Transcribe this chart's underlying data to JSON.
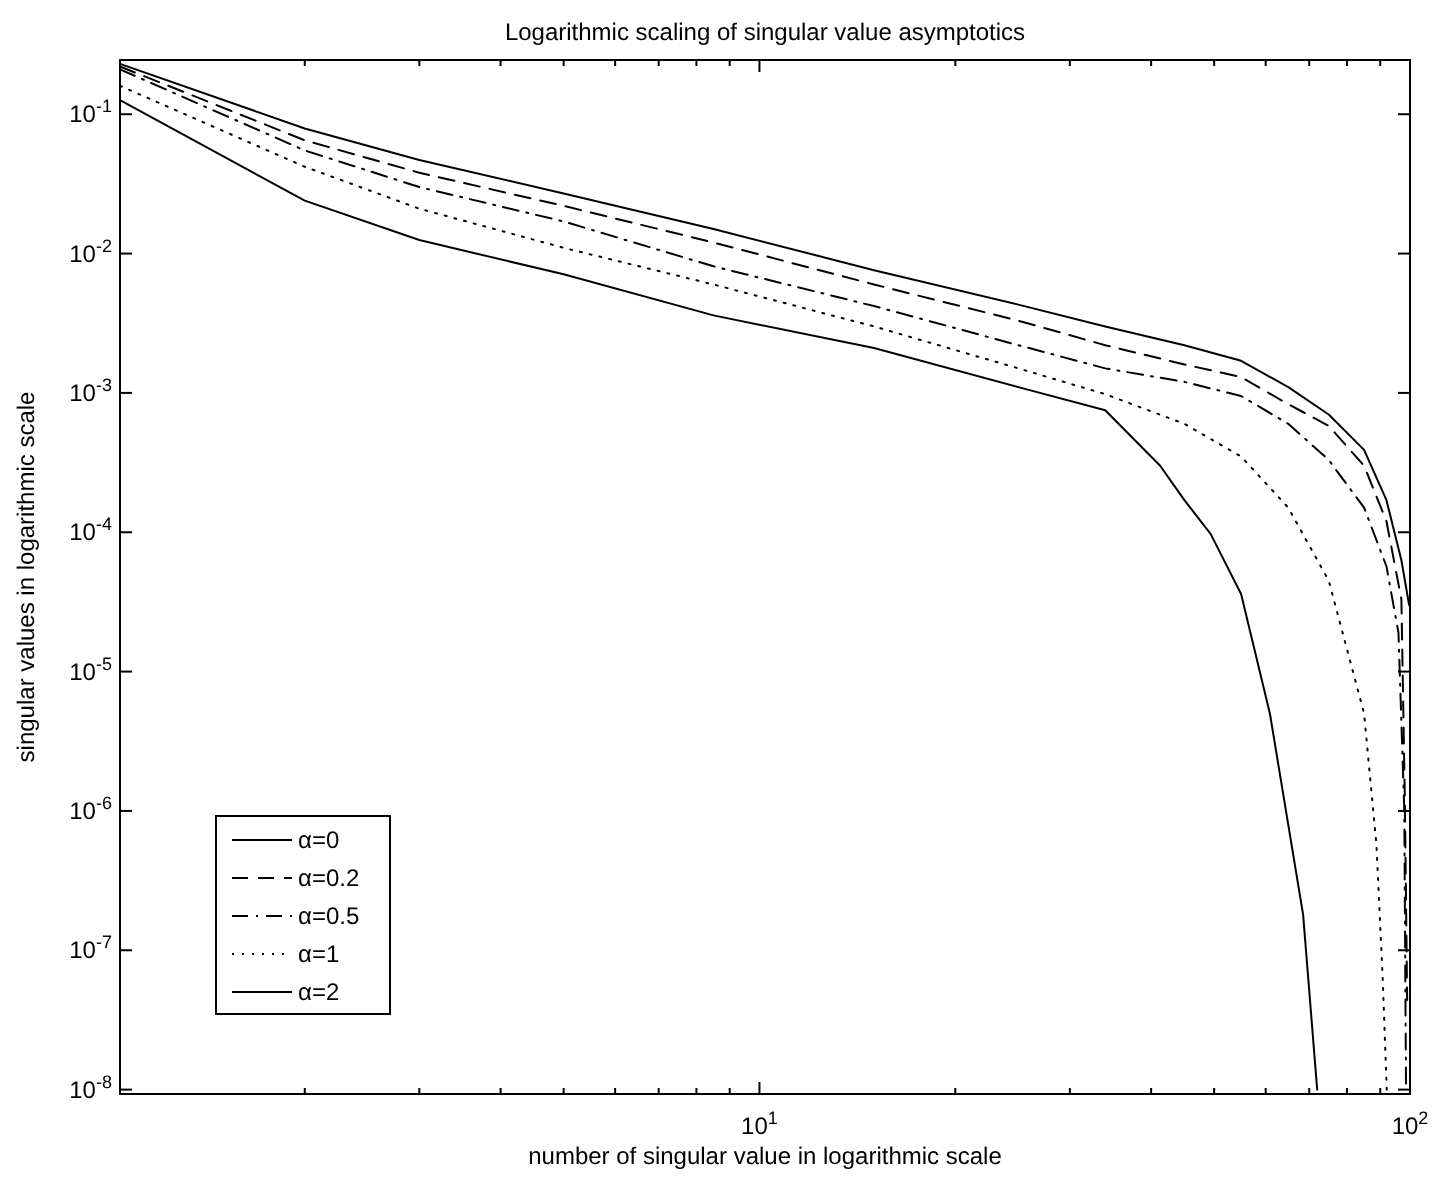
{
  "chart_data": {
    "type": "line",
    "title": "Logarithmic scaling of singular value asymptotics",
    "xlabel": "number of singular value in logarithmic scale",
    "ylabel": "singular values in logarithmic scale",
    "log": "xy",
    "grid": false,
    "legend": "bottom left",
    "marker": "none",
    "xlim": [
      1.04,
      100
    ],
    "ylim": [
      9.3e-09,
      0.245
    ],
    "xticks": [
      {
        "value": 2,
        "label": null
      },
      {
        "value": 3,
        "label": null
      },
      {
        "value": 4,
        "label": null
      },
      {
        "value": 5,
        "label": null
      },
      {
        "value": 6,
        "label": null
      },
      {
        "value": 7,
        "label": null
      },
      {
        "value": 8,
        "label": null
      },
      {
        "value": 9,
        "label": null
      },
      {
        "value": 10,
        "label": "10$^{1}$"
      },
      {
        "value": 20,
        "label": null
      },
      {
        "value": 30,
        "label": null
      },
      {
        "value": 40,
        "label": null
      },
      {
        "value": 50,
        "label": null
      },
      {
        "value": 60,
        "label": null
      },
      {
        "value": 70,
        "label": null
      },
      {
        "value": 80,
        "label": null
      },
      {
        "value": 90,
        "label": null
      },
      {
        "value": 100,
        "label": "10$^{2}$"
      }
    ],
    "yticks": [
      {
        "value": 1e-08,
        "label": "10$^{-8}$"
      },
      {
        "value": 1e-07,
        "label": "10$^{-7}$"
      },
      {
        "value": 1e-06,
        "label": "10$^{-6}$"
      },
      {
        "value": 1e-05,
        "label": "10$^{-5}$"
      },
      {
        "value": 0.0001,
        "label": "10$^{-4}$"
      },
      {
        "value": 0.001,
        "label": "10$^{-3}$"
      },
      {
        "value": 0.01,
        "label": "10$^{-2}$"
      },
      {
        "value": 0.1,
        "label": "10$^{-1}$"
      }
    ],
    "series": [
      {
        "name": "α=0",
        "color": "#000000",
        "line_style": "solid",
        "x": [
          1.04,
          2,
          3,
          5,
          8.5,
          15,
          25,
          34,
          45,
          55,
          65,
          75,
          85,
          92,
          97,
          99.7
        ],
        "values": [
          0.23,
          0.079,
          0.047,
          0.027,
          0.015,
          0.0076,
          0.0043,
          0.003,
          0.0022,
          0.0017,
          0.0011,
          0.0007,
          0.00039,
          0.00017,
          6.3e-05,
          3e-05
        ]
      },
      {
        "name": "α=0.2",
        "color": "#000000",
        "line_style": "dashed",
        "x": [
          1.04,
          2,
          3,
          5,
          8.5,
          15,
          25,
          34,
          45,
          55,
          65,
          75,
          85,
          92,
          97,
          98.2,
          99
        ],
        "values": [
          0.22,
          0.065,
          0.038,
          0.022,
          0.012,
          0.006,
          0.0033,
          0.0022,
          0.0016,
          0.0013,
          0.00083,
          0.00058,
          0.0003,
          0.00012,
          3.3e-05,
          1.2e-06,
          4.4e-08
        ]
      },
      {
        "name": "α=0.5",
        "color": "#000000",
        "line_style": "dashdot",
        "x": [
          1.04,
          2,
          3,
          5,
          8.5,
          15,
          25,
          34,
          45,
          55,
          65,
          75,
          85,
          92,
          96,
          98,
          98.6
        ],
        "values": [
          0.21,
          0.055,
          0.03,
          0.017,
          0.0081,
          0.0042,
          0.0022,
          0.0015,
          0.0012,
          0.00095,
          0.0006,
          0.00033,
          0.00015,
          5.7e-05,
          1.9e-05,
          1e-06,
          1e-08
        ]
      },
      {
        "name": "α=1",
        "color": "#000000",
        "line_style": "dotted",
        "x": [
          1.04,
          2,
          3,
          5,
          8.5,
          15,
          25,
          34,
          45,
          55,
          65,
          75,
          85,
          88.8,
          90.8,
          92.1
        ],
        "values": [
          0.16,
          0.042,
          0.021,
          0.011,
          0.006,
          0.003,
          0.0015,
          0.00098,
          0.0006,
          0.00035,
          0.00015,
          4.5e-05,
          5e-06,
          5.7e-07,
          6.2e-08,
          1e-08
        ]
      },
      {
        "name": "α=2",
        "color": "#000000",
        "line_style": "solid",
        "x": [
          1.04,
          2,
          3,
          5,
          8.5,
          15,
          25,
          34,
          41.3,
          45,
          49.4,
          55,
          60.9,
          68.5,
          72
        ],
        "values": [
          0.126,
          0.024,
          0.0125,
          0.0071,
          0.0036,
          0.0021,
          0.0011,
          0.00075,
          0.0003,
          0.00017,
          9.7e-05,
          3.6e-05,
          5e-06,
          1.8e-07,
          1e-08
        ]
      }
    ]
  }
}
